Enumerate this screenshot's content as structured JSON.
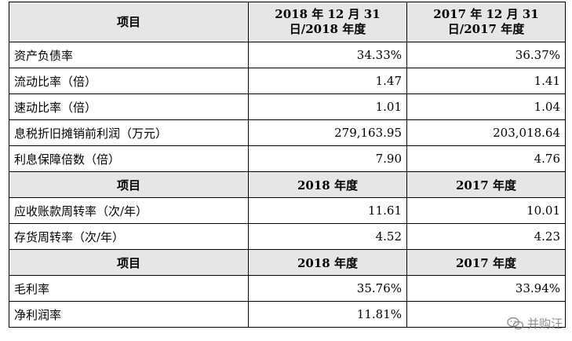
{
  "table": {
    "sections": [
      {
        "headers": [
          "项目",
          "2018 年 12 月 31 日/2018 年度",
          "2017 年 12 月 31 日/2017 年度"
        ],
        "rows": [
          {
            "label": "资产负债率",
            "v2018": "34.33%",
            "v2017": "36.37%"
          },
          {
            "label": "流动比率（倍）",
            "v2018": "1.47",
            "v2017": "1.41"
          },
          {
            "label": "速动比率（倍）",
            "v2018": "1.01",
            "v2017": "1.04"
          },
          {
            "label": "息税折旧摊销前利润（万元）",
            "v2018": "279,163.95",
            "v2017": "203,018.64"
          },
          {
            "label": "利息保障倍数（倍）",
            "v2018": "7.90",
            "v2017": "4.76"
          }
        ]
      },
      {
        "headers": [
          "项目",
          "2018 年度",
          "2017 年度"
        ],
        "rows": [
          {
            "label": "应收账款周转率（次/年）",
            "v2018": "11.61",
            "v2017": "10.01"
          },
          {
            "label": "存货周转率（次/年）",
            "v2018": "4.52",
            "v2017": "4.23"
          }
        ]
      },
      {
        "headers": [
          "项目",
          "2018 年度",
          "2017 年度"
        ],
        "rows": [
          {
            "label": "毛利率",
            "v2018": "35.76%",
            "v2017": "33.94%"
          },
          {
            "label": "净利润率",
            "v2018": "11.81%",
            "v2017": ""
          }
        ]
      }
    ]
  },
  "watermark": {
    "text": "并购汪",
    "icon": "wechat-bubble-icon"
  }
}
